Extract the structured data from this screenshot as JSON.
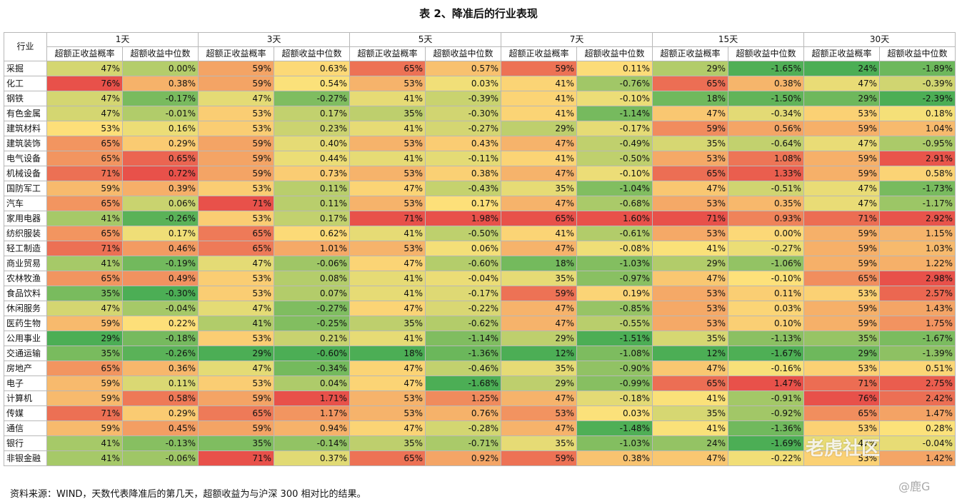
{
  "title": "表 2、降准后的行业表现",
  "header_industry": "行业",
  "periods": [
    "1天",
    "3天",
    "5天",
    "7天",
    "15天",
    "30天"
  ],
  "sub_headers": [
    "超额正收益概率",
    "超额收益中位数"
  ],
  "note": "资料来源：WIND，天数代表降准后的第几天，超额收益为与沪深 300 相对比的结果。",
  "watermark": "老虎社区",
  "watermark_user": "@鹿G",
  "colors": {
    "high": "#e8514a",
    "mid": "#fde27a",
    "low": "#4cae55"
  },
  "rows": [
    {
      "name": "采掘",
      "v": [
        "47%",
        "0.00%",
        "59%",
        "0.63%",
        "65%",
        "0.57%",
        "59%",
        "0.11%",
        "29%",
        "-1.65%",
        "24%",
        "-1.89%"
      ]
    },
    {
      "name": "化工",
      "v": [
        "76%",
        "0.38%",
        "59%",
        "0.54%",
        "53%",
        "0.03%",
        "41%",
        "-0.76%",
        "65%",
        "0.38%",
        "47%",
        "-0.39%"
      ]
    },
    {
      "name": "钢铁",
      "v": [
        "47%",
        "-0.17%",
        "47%",
        "-0.27%",
        "41%",
        "-0.39%",
        "41%",
        "-0.10%",
        "18%",
        "-1.50%",
        "29%",
        "-2.39%"
      ]
    },
    {
      "name": "有色金属",
      "v": [
        "47%",
        "-0.01%",
        "53%",
        "0.17%",
        "35%",
        "-0.30%",
        "41%",
        "-1.14%",
        "47%",
        "-0.34%",
        "53%",
        "0.18%"
      ]
    },
    {
      "name": "建筑材料",
      "v": [
        "53%",
        "0.16%",
        "53%",
        "0.23%",
        "41%",
        "-0.27%",
        "29%",
        "-0.17%",
        "59%",
        "0.56%",
        "59%",
        "1.04%"
      ]
    },
    {
      "name": "建筑装饰",
      "v": [
        "65%",
        "0.29%",
        "59%",
        "0.40%",
        "53%",
        "0.43%",
        "47%",
        "-0.49%",
        "35%",
        "-0.64%",
        "47%",
        "-0.95%"
      ]
    },
    {
      "name": "电气设备",
      "v": [
        "65%",
        "0.65%",
        "59%",
        "0.44%",
        "41%",
        "-0.11%",
        "41%",
        "-0.50%",
        "53%",
        "1.08%",
        "59%",
        "2.91%"
      ]
    },
    {
      "name": "机械设备",
      "v": [
        "71%",
        "0.72%",
        "59%",
        "0.73%",
        "53%",
        "0.38%",
        "47%",
        "-0.10%",
        "65%",
        "1.33%",
        "59%",
        "0.58%"
      ]
    },
    {
      "name": "国防军工",
      "v": [
        "59%",
        "0.39%",
        "53%",
        "0.11%",
        "47%",
        "-0.43%",
        "35%",
        "-1.04%",
        "47%",
        "-0.51%",
        "47%",
        "-1.73%"
      ]
    },
    {
      "name": "汽车",
      "v": [
        "65%",
        "0.06%",
        "71%",
        "0.11%",
        "53%",
        "0.17%",
        "47%",
        "-0.68%",
        "53%",
        "0.35%",
        "47%",
        "-1.17%"
      ]
    },
    {
      "name": "家用电器",
      "v": [
        "41%",
        "-0.26%",
        "53%",
        "0.17%",
        "71%",
        "1.98%",
        "65%",
        "1.60%",
        "71%",
        "0.93%",
        "71%",
        "2.92%"
      ]
    },
    {
      "name": "纺织服装",
      "v": [
        "65%",
        "0.17%",
        "65%",
        "0.62%",
        "41%",
        "-0.50%",
        "41%",
        "-0.61%",
        "53%",
        "0.00%",
        "59%",
        "1.15%"
      ]
    },
    {
      "name": "轻工制造",
      "v": [
        "71%",
        "0.46%",
        "65%",
        "1.01%",
        "53%",
        "0.06%",
        "47%",
        "-0.08%",
        "41%",
        "-0.27%",
        "59%",
        "1.03%"
      ]
    },
    {
      "name": "商业贸易",
      "v": [
        "41%",
        "-0.19%",
        "47%",
        "-0.06%",
        "47%",
        "-0.60%",
        "18%",
        "-1.03%",
        "29%",
        "-1.06%",
        "59%",
        "1.22%"
      ]
    },
    {
      "name": "农林牧渔",
      "v": [
        "65%",
        "0.49%",
        "53%",
        "0.08%",
        "41%",
        "-0.04%",
        "35%",
        "-0.97%",
        "47%",
        "-0.10%",
        "65%",
        "2.98%"
      ]
    },
    {
      "name": "食品饮料",
      "v": [
        "35%",
        "-0.30%",
        "53%",
        "0.07%",
        "41%",
        "-0.17%",
        "59%",
        "0.19%",
        "53%",
        "0.11%",
        "53%",
        "2.57%"
      ]
    },
    {
      "name": "休闲服务",
      "v": [
        "47%",
        "-0.04%",
        "47%",
        "-0.27%",
        "47%",
        "-0.22%",
        "47%",
        "-0.85%",
        "53%",
        "0.03%",
        "59%",
        "1.43%"
      ]
    },
    {
      "name": "医药生物",
      "v": [
        "59%",
        "0.22%",
        "41%",
        "-0.25%",
        "35%",
        "-0.62%",
        "47%",
        "-0.55%",
        "53%",
        "0.10%",
        "59%",
        "1.75%"
      ]
    },
    {
      "name": "公用事业",
      "v": [
        "29%",
        "-0.18%",
        "53%",
        "0.21%",
        "41%",
        "-1.14%",
        "29%",
        "-1.51%",
        "35%",
        "-1.13%",
        "35%",
        "-1.67%"
      ]
    },
    {
      "name": "交通运输",
      "v": [
        "35%",
        "-0.26%",
        "29%",
        "-0.60%",
        "18%",
        "-1.36%",
        "12%",
        "-1.08%",
        "12%",
        "-1.67%",
        "29%",
        "-1.39%"
      ]
    },
    {
      "name": "房地产",
      "v": [
        "65%",
        "0.36%",
        "47%",
        "-0.34%",
        "47%",
        "-0.46%",
        "35%",
        "-0.90%",
        "47%",
        "-0.16%",
        "53%",
        "0.51%"
      ]
    },
    {
      "name": "电子",
      "v": [
        "59%",
        "0.11%",
        "53%",
        "0.04%",
        "47%",
        "-1.68%",
        "29%",
        "-0.99%",
        "65%",
        "1.47%",
        "71%",
        "2.75%"
      ]
    },
    {
      "name": "计算机",
      "v": [
        "59%",
        "0.58%",
        "59%",
        "1.71%",
        "53%",
        "1.25%",
        "47%",
        "-0.18%",
        "41%",
        "-0.91%",
        "76%",
        "2.42%"
      ]
    },
    {
      "name": "传媒",
      "v": [
        "71%",
        "0.29%",
        "65%",
        "1.17%",
        "53%",
        "0.76%",
        "53%",
        "0.03%",
        "35%",
        "-0.92%",
        "65%",
        "1.47%"
      ]
    },
    {
      "name": "通信",
      "v": [
        "59%",
        "0.45%",
        "59%",
        "0.94%",
        "47%",
        "-0.28%",
        "47%",
        "-1.48%",
        "41%",
        "-1.36%",
        "53%",
        "0.28%"
      ]
    },
    {
      "name": "银行",
      "v": [
        "41%",
        "-0.13%",
        "35%",
        "-0.14%",
        "35%",
        "-0.71%",
        "35%",
        "-1.03%",
        "24%",
        "-1.69%",
        "47%",
        "-0.04%"
      ]
    },
    {
      "name": "非银金融",
      "v": [
        "41%",
        "-0.06%",
        "71%",
        "0.37%",
        "65%",
        "0.92%",
        "59%",
        "0.38%",
        "47%",
        "-0.22%",
        "53%",
        "1.42%"
      ]
    }
  ]
}
